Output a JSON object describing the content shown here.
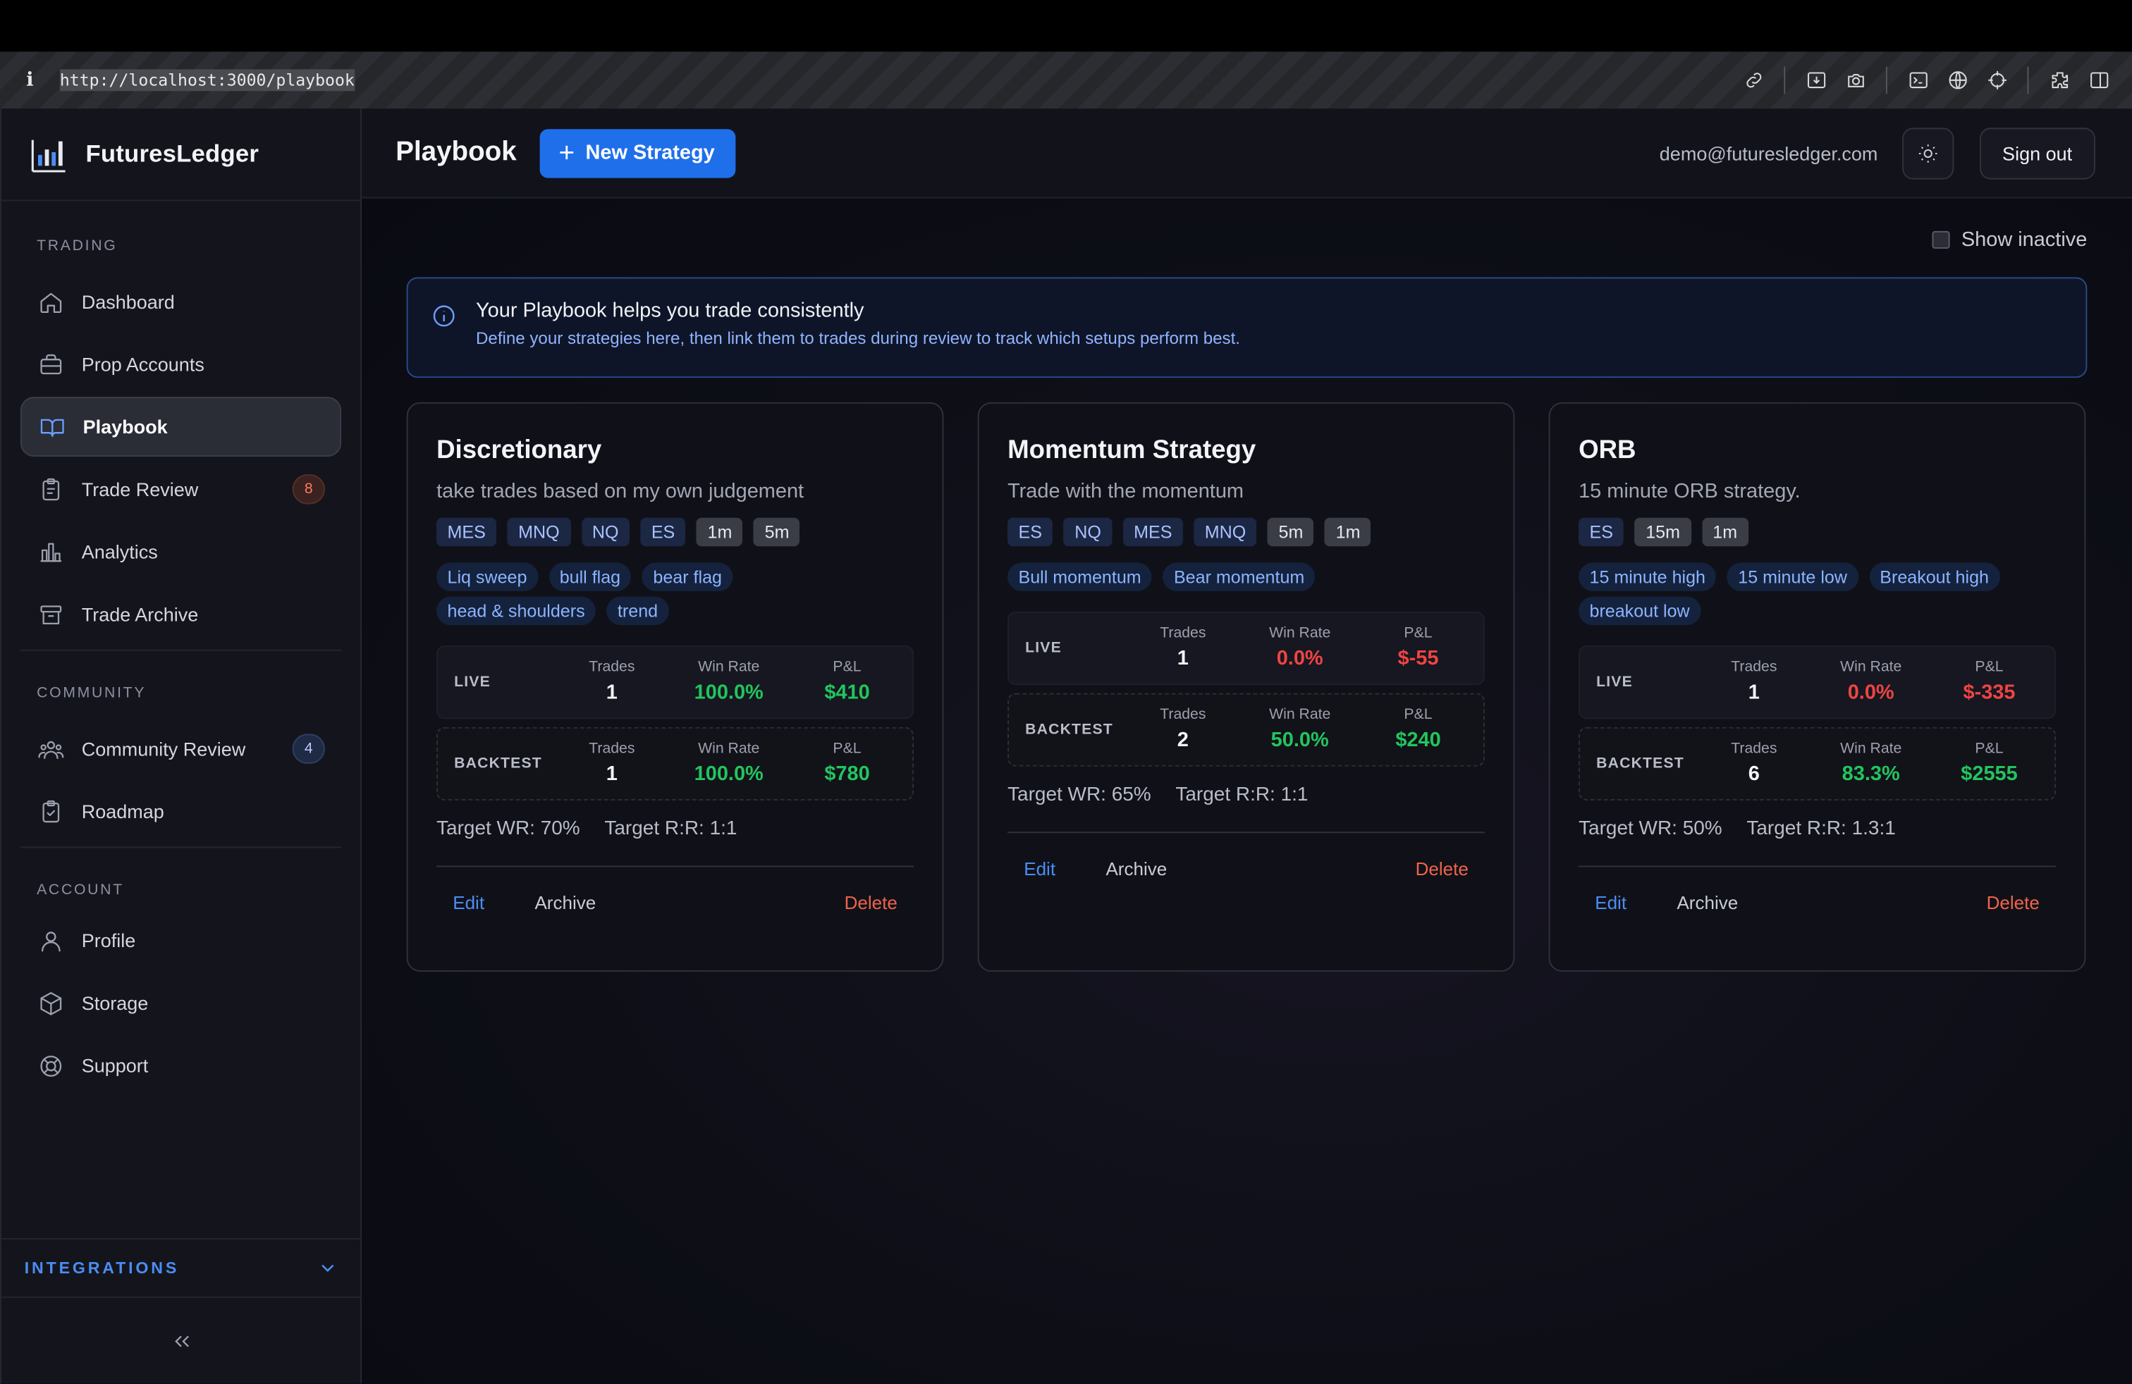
{
  "browser": {
    "url": "http://localhost:3000/playbook",
    "info_glyph": "i",
    "tools": [
      "link-icon",
      "download-icon",
      "camera-icon",
      "terminal-icon",
      "globe-icon",
      "crosshair-icon",
      "extension-icon",
      "sidebar-icon"
    ]
  },
  "brand": {
    "name": "FuturesLedger"
  },
  "sidebar": {
    "sections": [
      {
        "title": "TRADING",
        "items": [
          {
            "label": "Dashboard",
            "icon": "home-icon"
          },
          {
            "label": "Prop Accounts",
            "icon": "briefcase-icon"
          },
          {
            "label": "Playbook",
            "icon": "book-icon",
            "active": true
          },
          {
            "label": "Trade Review",
            "icon": "clipboard-icon",
            "badge": "8"
          },
          {
            "label": "Analytics",
            "icon": "bar-chart-icon"
          },
          {
            "label": "Trade Archive",
            "icon": "archive-icon"
          }
        ]
      },
      {
        "title": "COMMUNITY",
        "items": [
          {
            "label": "Community Review",
            "icon": "users-icon",
            "badge": "4"
          },
          {
            "label": "Roadmap",
            "icon": "clipboard-check-icon"
          }
        ]
      },
      {
        "title": "ACCOUNT",
        "items": [
          {
            "label": "Profile",
            "icon": "user-icon"
          },
          {
            "label": "Storage",
            "icon": "box-icon"
          },
          {
            "label": "Support",
            "icon": "lifebuoy-icon"
          }
        ]
      }
    ],
    "integrations_label": "INTEGRATIONS"
  },
  "header": {
    "title": "Playbook",
    "new_strategy_label": "New Strategy",
    "email": "demo@futuresledger.com",
    "sign_out_label": "Sign out"
  },
  "main": {
    "show_inactive_label": "Show inactive",
    "banner": {
      "title": "Your Playbook helps you trade consistently",
      "description": "Define your strategies here, then link them to trades during review to track which setups perform best."
    },
    "stat_headers": {
      "trades": "Trades",
      "win_rate": "Win Rate",
      "pnl": "P&L"
    },
    "labels": {
      "live": "LIVE",
      "backtest": "BACKTEST",
      "edit": "Edit",
      "archive": "Archive",
      "delete": "Delete"
    },
    "strategies": [
      {
        "name": "Discretionary",
        "description": "take trades based on my own judgement",
        "instruments": [
          "MES",
          "MNQ",
          "NQ",
          "ES"
        ],
        "timeframes": [
          "1m",
          "5m"
        ],
        "tags": [
          "Liq sweep",
          "bull flag",
          "bear flag",
          "head & shoulders",
          "trend"
        ],
        "live": {
          "trades": "1",
          "win_rate": "100.0%",
          "pnl": "$410",
          "tone": "green"
        },
        "backtest": {
          "trades": "1",
          "win_rate": "100.0%",
          "pnl": "$780",
          "tone": "green"
        },
        "target_wr": "Target WR: 70%",
        "target_rr": "Target R:R: 1:1"
      },
      {
        "name": "Momentum Strategy",
        "description": "Trade with the momentum",
        "instruments": [
          "ES",
          "NQ",
          "MES",
          "MNQ"
        ],
        "timeframes": [
          "5m",
          "1m"
        ],
        "tags": [
          "Bull momentum",
          "Bear momentum"
        ],
        "live": {
          "trades": "1",
          "win_rate": "0.0%",
          "pnl": "$-55",
          "tone": "red"
        },
        "backtest": {
          "trades": "2",
          "win_rate": "50.0%",
          "pnl": "$240",
          "tone": "green"
        },
        "target_wr": "Target WR: 65%",
        "target_rr": "Target R:R: 1:1"
      },
      {
        "name": "ORB",
        "description": "15 minute ORB strategy.",
        "instruments": [
          "ES"
        ],
        "timeframes": [
          "15m",
          "1m"
        ],
        "tags": [
          "15 minute high",
          "15 minute low",
          "Breakout high",
          "breakout low"
        ],
        "live": {
          "trades": "1",
          "win_rate": "0.0%",
          "pnl": "$-335",
          "tone": "red"
        },
        "backtest": {
          "trades": "6",
          "win_rate": "83.3%",
          "pnl": "$2555",
          "tone": "green"
        },
        "target_wr": "Target WR: 50%",
        "target_rr": "Target R:R: 1.3:1"
      }
    ]
  },
  "colors": {
    "accent": "#1f6feb",
    "positive": "#22c55e",
    "negative": "#ef4444",
    "danger_text": "#f0634a",
    "badge_orange": "#ff7a59"
  }
}
